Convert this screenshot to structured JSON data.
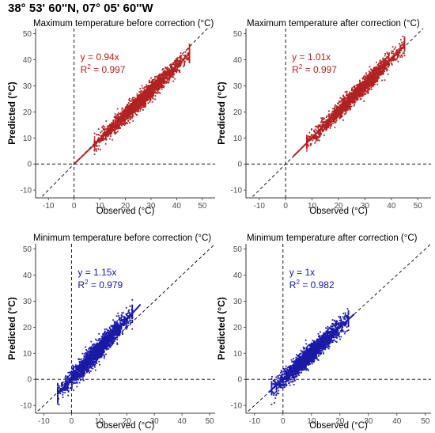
{
  "figure_title": "38° 53' 60''N, 07° 05' 60''W",
  "chart_data": [
    {
      "type": "scatter",
      "title": "Maximum temperature before correction (°C)",
      "xlabel": "Observed (°C)",
      "ylabel": "Predicted (°C)",
      "xlim": [
        -15,
        55
      ],
      "ylim": [
        -13,
        52
      ],
      "xticks": [
        -10,
        0,
        10,
        20,
        30,
        40,
        50
      ],
      "yticks": [
        -10,
        0,
        10,
        20,
        30,
        40,
        50
      ],
      "color": "#b22222",
      "line_color": "#b22222",
      "equation": "y = 0.94x",
      "r2_label": "R",
      "r2_value": " = 0.997",
      "slope": 0.94,
      "fit_range": [
        0,
        45
      ],
      "observed_range": [
        8,
        45
      ],
      "spread": 1.6,
      "n_points": 2200,
      "reference_lines": [
        "x = 0",
        "y = 0",
        "y = x"
      ]
    },
    {
      "type": "scatter",
      "title": "Maximum temperature after correction (°C)",
      "xlabel": "Observed (°C)",
      "ylabel": "Predicted (°C)",
      "xlim": [
        -15,
        55
      ],
      "ylim": [
        -13,
        52
      ],
      "xticks": [
        -10,
        0,
        10,
        20,
        30,
        40,
        50
      ],
      "yticks": [
        -10,
        0,
        10,
        20,
        30,
        40,
        50
      ],
      "color": "#b22222",
      "line_color": "#b22222",
      "equation": "y = 1.01x",
      "r2_label": "R",
      "r2_value": " = 0.997",
      "slope": 1.01,
      "fit_range": [
        3,
        45
      ],
      "observed_range": [
        8,
        45
      ],
      "spread": 1.6,
      "n_points": 2200,
      "reference_lines": [
        "x = 0",
        "y = 0",
        "y = x"
      ]
    },
    {
      "type": "scatter",
      "title": "Minimum temperature before correction (°C)",
      "xlabel": "Observed (°C)",
      "ylabel": "Predicted (°C)",
      "xlim": [
        -13,
        52
      ],
      "ylim": [
        -13,
        52
      ],
      "xticks": [
        -10,
        0,
        10,
        20,
        30,
        40,
        50
      ],
      "yticks": [
        -10,
        0,
        10,
        20,
        30,
        40,
        50
      ],
      "color": "#1a1aa6",
      "line_color": "#1a1aa6",
      "equation": "y = 1.15x",
      "r2_label": "R",
      "r2_value": " = 0.979",
      "slope": 1.15,
      "fit_range": [
        -5,
        25
      ],
      "observed_range": [
        -5,
        22
      ],
      "spread": 1.9,
      "n_points": 2200,
      "reference_lines": [
        "x = 0",
        "y = 0",
        "y = x"
      ]
    },
    {
      "type": "scatter",
      "title": "Minimum temperature after correction (°C)",
      "xlabel": "Observed (°C)",
      "ylabel": "Predicted (°C)",
      "xlim": [
        -13,
        52
      ],
      "ylim": [
        -13,
        52
      ],
      "xticks": [
        -10,
        0,
        10,
        20,
        30,
        40,
        50
      ],
      "yticks": [
        -10,
        0,
        10,
        20,
        30,
        40,
        50
      ],
      "color": "#1a1aa6",
      "line_color": "#1a1aa6",
      "equation": "y = 1x",
      "r2_label": "R",
      "r2_value": " = 0.982",
      "slope": 1.0,
      "fit_range": [
        -5,
        25
      ],
      "observed_range": [
        -4,
        23
      ],
      "spread": 1.9,
      "n_points": 2200,
      "reference_lines": [
        "x = 0",
        "y = 0",
        "y = x"
      ]
    }
  ]
}
